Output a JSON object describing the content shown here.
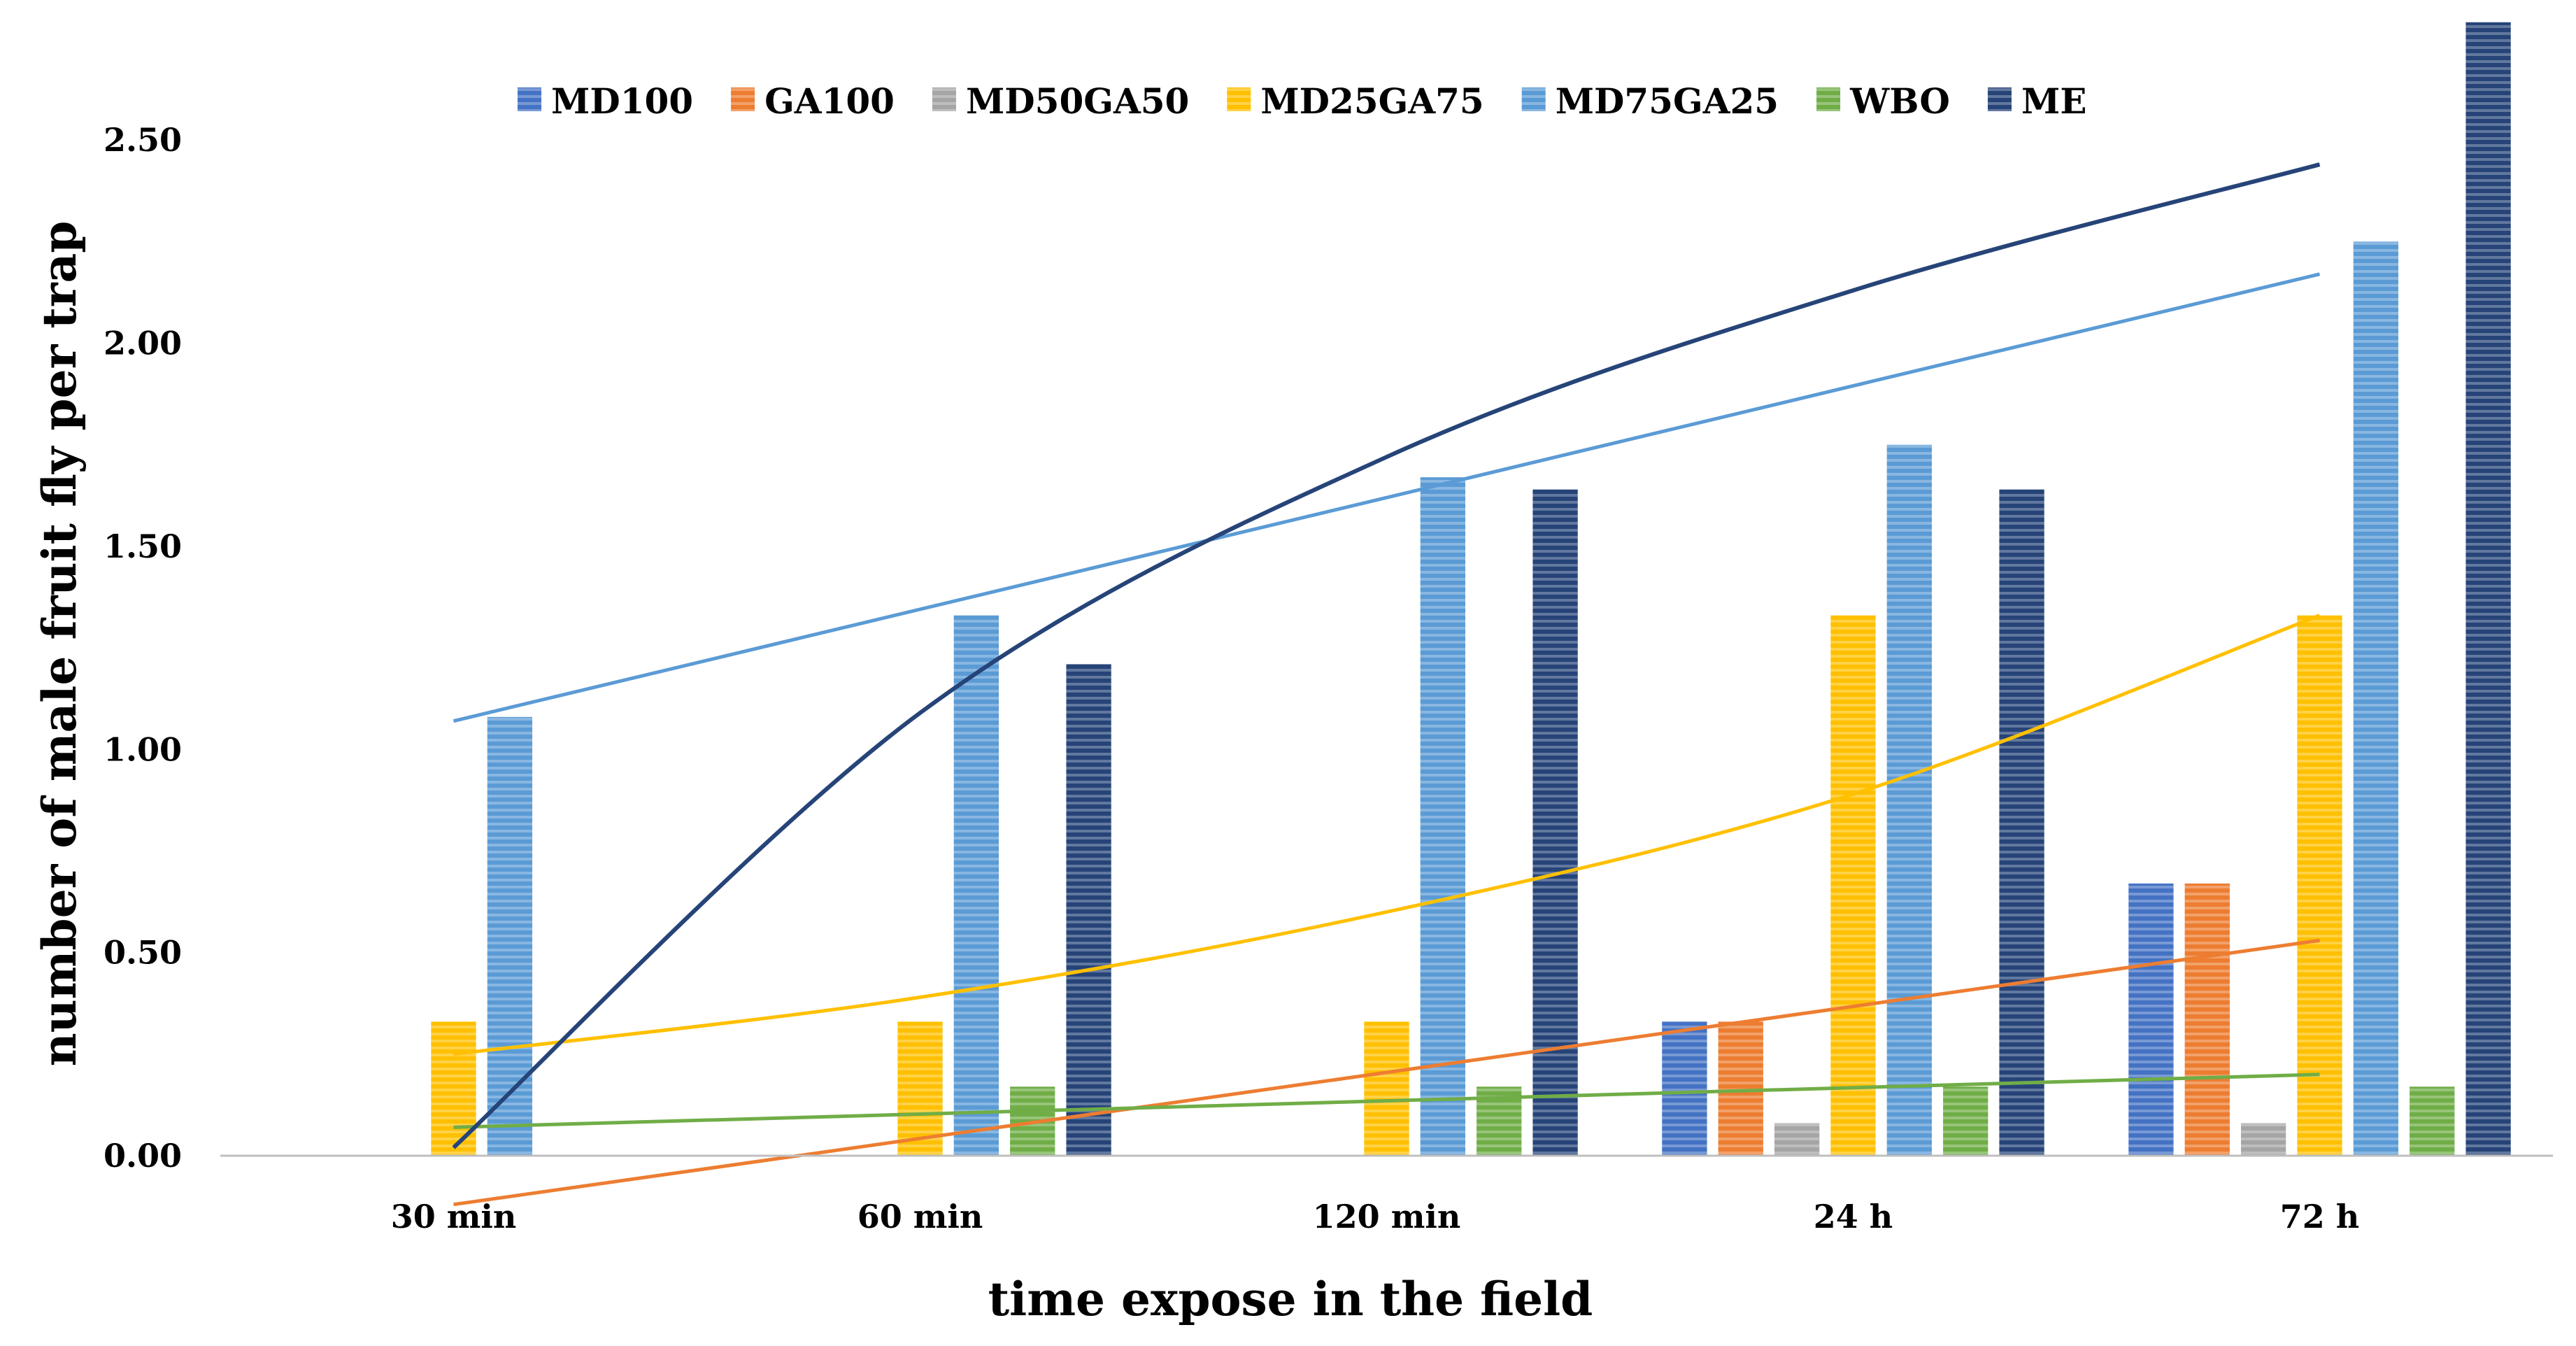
{
  "chart_data": {
    "type": "bar",
    "title": "",
    "xlabel": "time expose in the field",
    "ylabel": "number of male fruit fly per trap",
    "categories": [
      "30 min",
      "60 min",
      "120 min",
      "24 h",
      "72 h"
    ],
    "ylim": [
      0,
      2.8
    ],
    "yticks": [
      "0.00",
      "0.50",
      "1.00",
      "1.50",
      "2.00",
      "2.50"
    ],
    "ytick_values": [
      0,
      0.5,
      1.0,
      1.5,
      2.0,
      2.5
    ],
    "grid": false,
    "legend_position": "top",
    "series": [
      {
        "name": "MD100",
        "color": "#4472C4",
        "values": [
          0,
          0,
          0,
          0.33,
          0.67
        ]
      },
      {
        "name": "GA100",
        "color": "#ED7D31",
        "values": [
          0,
          0,
          0,
          0.33,
          0.67
        ]
      },
      {
        "name": "MD50GA50",
        "color": "#A5A5A5",
        "values": [
          0,
          0,
          0,
          0.08,
          0.08
        ]
      },
      {
        "name": "MD25GA75",
        "color": "#FFC000",
        "values": [
          0.33,
          0.33,
          0.33,
          1.33,
          1.33
        ]
      },
      {
        "name": "MD75GA25",
        "color": "#5B9BD5",
        "values": [
          1.08,
          1.33,
          1.67,
          1.75,
          2.25
        ]
      },
      {
        "name": "WBO",
        "color": "#70AD47",
        "values": [
          0,
          0.17,
          0.17,
          0.17,
          0.17
        ]
      },
      {
        "name": "ME",
        "color": "#264478",
        "values": [
          0,
          1.21,
          1.64,
          1.64,
          2.79
        ]
      }
    ],
    "trendlines": [
      {
        "series": "GA100",
        "kind": "linear",
        "color": "#ED7D31",
        "points": [
          [
            1,
            -0.12
          ],
          [
            5,
            0.53
          ]
        ]
      },
      {
        "series": "WBO",
        "kind": "linear",
        "color": "#70AD47",
        "points": [
          [
            1,
            0.07
          ],
          [
            5,
            0.2
          ]
        ]
      },
      {
        "series": "MD75GA25",
        "kind": "linear",
        "color": "#5B9BD5",
        "points": [
          [
            1,
            1.07
          ],
          [
            5,
            2.17
          ]
        ]
      },
      {
        "series": "MD25GA75",
        "kind": "exponential",
        "color": "#FFC000",
        "points": [
          [
            1,
            0.25
          ],
          [
            2,
            0.39
          ],
          [
            3,
            0.6
          ],
          [
            4,
            0.89
          ],
          [
            5,
            1.33
          ]
        ]
      },
      {
        "series": "ME",
        "kind": "logarithmic",
        "color": "#264478",
        "points": [
          [
            1,
            0.02
          ],
          [
            2,
            1.09
          ],
          [
            3,
            1.72
          ],
          [
            4,
            2.13
          ],
          [
            5,
            2.44
          ]
        ]
      }
    ]
  }
}
